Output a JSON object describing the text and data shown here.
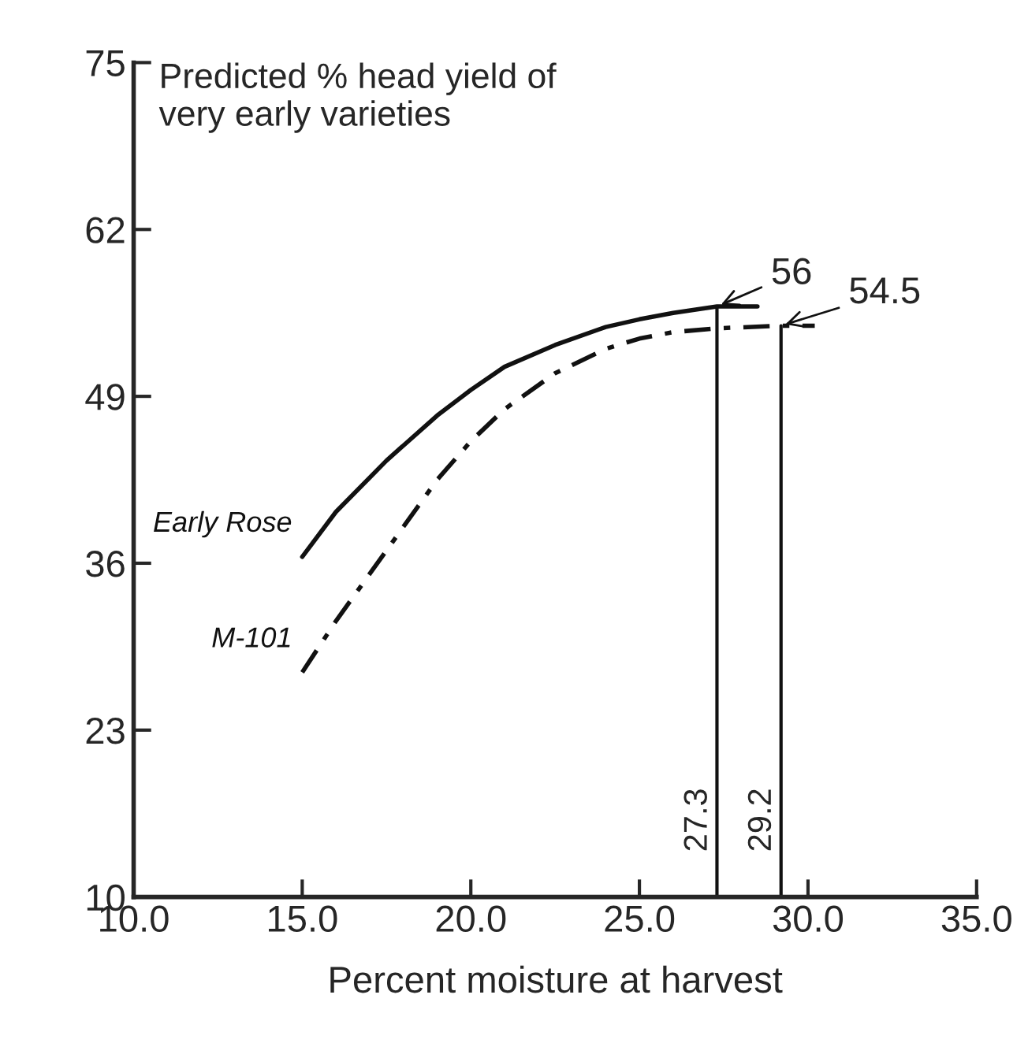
{
  "chart_data": {
    "type": "line",
    "title": "Predicted % head yield of\nvery early varieties",
    "xlabel": "Percent moisture at harvest",
    "xlim": [
      10.0,
      35.0
    ],
    "xticks": [
      {
        "value": 10,
        "label": "10.0"
      },
      {
        "value": 15,
        "label": "15.0"
      },
      {
        "value": 20,
        "label": "20.0"
      },
      {
        "value": 25,
        "label": "25.0"
      },
      {
        "value": 30,
        "label": "30.0"
      },
      {
        "value": 35,
        "label": "35.0"
      }
    ],
    "ylim": [
      10,
      75
    ],
    "yticks": [
      10,
      23,
      36,
      49,
      62,
      75
    ],
    "grid": false,
    "legend": false,
    "marker": "none",
    "series": [
      {
        "name": "Early Rose",
        "color": "#111111",
        "line_style": "solid",
        "x": [
          15,
          16,
          17.5,
          19,
          20,
          21,
          22.5,
          24,
          25,
          26,
          27.3,
          28.5
        ],
        "values": [
          36.5,
          40,
          44,
          47.5,
          49.5,
          51.3,
          53,
          54.4,
          55,
          55.5,
          56,
          56
        ]
      },
      {
        "name": "M-101",
        "color": "#111111",
        "line_style": "dashed",
        "x": [
          15,
          16,
          17.5,
          19,
          20,
          21,
          22.5,
          24,
          25,
          26,
          27.3,
          29.2,
          30.2
        ],
        "values": [
          27.5,
          31.5,
          37,
          42.5,
          45.5,
          48,
          50.8,
          52.7,
          53.5,
          54,
          54.3,
          54.5,
          54.5
        ]
      }
    ],
    "ref_lines": [
      {
        "axis": "x",
        "value": 27.3,
        "label": "27.3",
        "color": "#111111"
      },
      {
        "axis": "x",
        "value": 29.2,
        "label": "29.2",
        "color": "#111111"
      }
    ],
    "annotations": [
      {
        "text": "56",
        "x": 27.3,
        "y": 56
      },
      {
        "text": "54.5",
        "x": 29.2,
        "y": 54.5
      }
    ]
  }
}
